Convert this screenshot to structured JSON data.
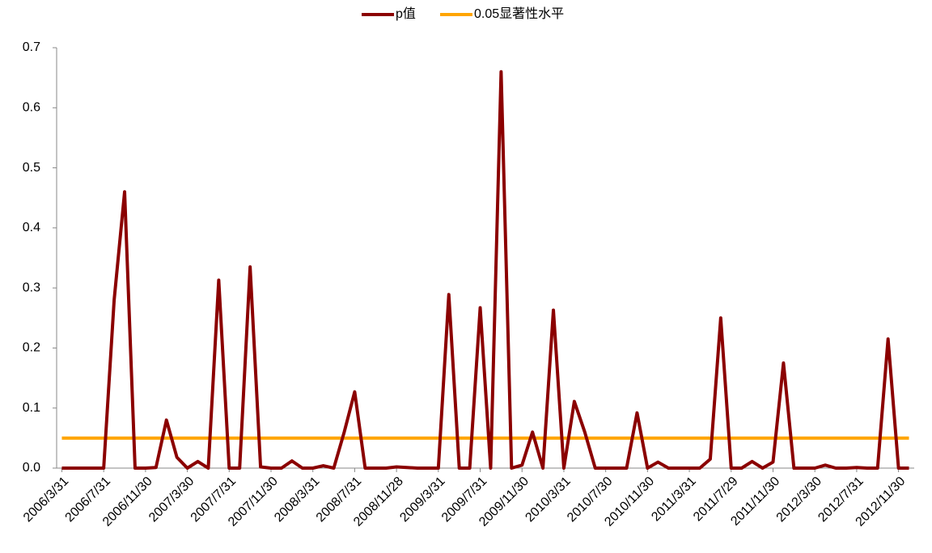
{
  "chart_data": {
    "type": "line",
    "categories": [
      "2006/3/31",
      null,
      null,
      null,
      "2006/7/31",
      null,
      null,
      null,
      "2006/11/30",
      null,
      null,
      null,
      "2007/3/30",
      null,
      null,
      null,
      "2007/7/31",
      null,
      null,
      null,
      "2007/11/30",
      null,
      null,
      null,
      "2008/3/31",
      null,
      null,
      null,
      "2008/7/31",
      null,
      null,
      null,
      "2008/11/28",
      null,
      null,
      null,
      "2009/3/31",
      null,
      null,
      null,
      "2009/7/31",
      null,
      null,
      null,
      "2009/11/30",
      null,
      null,
      null,
      "2010/3/31",
      null,
      null,
      null,
      "2010/7/30",
      null,
      null,
      null,
      "2010/11/30",
      null,
      null,
      null,
      "2011/3/31",
      null,
      null,
      null,
      "2011/7/29",
      null,
      null,
      null,
      "2011/11/30",
      null,
      null,
      null,
      "2012/3/30",
      null,
      null,
      null,
      "2012/7/31",
      null,
      null,
      null,
      "2012/11/30",
      null
    ],
    "series": [
      {
        "name": "p值",
        "color": "#8b0000",
        "values": [
          0,
          0,
          0,
          0,
          0,
          0.28,
          0.46,
          0,
          0,
          0.001,
          0.08,
          0.018,
          0,
          0.011,
          0,
          0.313,
          0,
          0,
          0.335,
          0.002,
          0,
          0,
          0.012,
          0,
          0,
          0.004,
          0,
          0.06,
          0.127,
          0,
          0,
          0,
          0.002,
          0.001,
          0,
          0,
          0,
          0.289,
          0,
          0,
          0.267,
          0,
          0.66,
          0,
          0.005,
          0.06,
          0,
          0.263,
          0,
          0.111,
          0.06,
          0,
          0,
          0,
          0,
          0.092,
          0,
          0.01,
          0,
          0,
          0,
          0,
          0.015,
          0.25,
          0,
          0,
          0.011,
          0,
          0.01,
          0.175,
          0,
          0,
          0,
          0.005,
          0,
          0,
          0.001,
          0,
          0,
          0.215,
          0,
          0
        ]
      },
      {
        "name": "0.05显著性水平",
        "color": "#ffa500",
        "values": [
          0.05,
          0.05,
          0.05,
          0.05,
          0.05,
          0.05,
          0.05,
          0.05,
          0.05,
          0.05,
          0.05,
          0.05,
          0.05,
          0.05,
          0.05,
          0.05,
          0.05,
          0.05,
          0.05,
          0.05,
          0.05,
          0.05,
          0.05,
          0.05,
          0.05,
          0.05,
          0.05,
          0.05,
          0.05,
          0.05,
          0.05,
          0.05,
          0.05,
          0.05,
          0.05,
          0.05,
          0.05,
          0.05,
          0.05,
          0.05,
          0.05,
          0.05,
          0.05,
          0.05,
          0.05,
          0.05,
          0.05,
          0.05,
          0.05,
          0.05,
          0.05,
          0.05,
          0.05,
          0.05,
          0.05,
          0.05,
          0.05,
          0.05,
          0.05,
          0.05,
          0.05,
          0.05,
          0.05,
          0.05,
          0.05,
          0.05,
          0.05,
          0.05,
          0.05,
          0.05,
          0.05,
          0.05,
          0.05,
          0.05,
          0.05,
          0.05,
          0.05,
          0.05,
          0.05,
          0.05,
          0.05,
          0.05
        ]
      }
    ],
    "ylim": [
      0,
      0.7
    ],
    "yticks": [
      {
        "value": 0,
        "label": "0.0"
      },
      0.1,
      0.2,
      0.3,
      0.4,
      0.5,
      0.6,
      0.7
    ],
    "legend": "top"
  }
}
